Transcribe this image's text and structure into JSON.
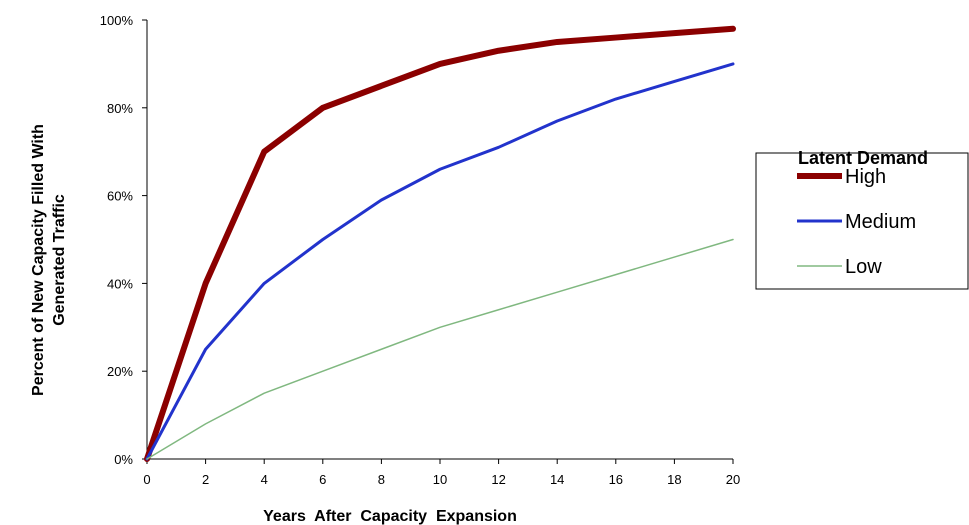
{
  "chart_data": {
    "type": "line",
    "xlabel": "Years  After  Capacity  Expansion",
    "ylabel_lines": [
      "Percent of New Capacity Filled With",
      "Generated Traffic"
    ],
    "x_ticks": [
      0,
      2,
      4,
      6,
      8,
      10,
      12,
      14,
      16,
      18,
      20
    ],
    "y_ticks": [
      "0%",
      "20%",
      "40%",
      "60%",
      "80%",
      "100%"
    ],
    "xlim": [
      0,
      20
    ],
    "ylim": [
      0,
      100
    ],
    "grid": false,
    "legend": {
      "title": "Latent Demand",
      "placement": "right"
    },
    "series": [
      {
        "name": "High",
        "color": "#8b0000",
        "x": [
          0,
          2,
          4,
          6,
          8,
          10,
          12,
          14,
          16,
          18,
          20
        ],
        "values": [
          0,
          40,
          70,
          80,
          85,
          90,
          93,
          95,
          96,
          97,
          98
        ]
      },
      {
        "name": "Medium",
        "color": "#2233cc",
        "x": [
          0,
          2,
          4,
          6,
          8,
          10,
          12,
          14,
          16,
          18,
          20
        ],
        "values": [
          0,
          25,
          40,
          50,
          59,
          66,
          71,
          77,
          82,
          86,
          90
        ]
      },
      {
        "name": "Low",
        "color": "#80b880",
        "x": [
          0,
          2,
          4,
          6,
          8,
          10,
          12,
          14,
          16,
          18,
          20
        ],
        "values": [
          0,
          8,
          15,
          20,
          25,
          30,
          34,
          38,
          42,
          46,
          50
        ]
      }
    ]
  }
}
